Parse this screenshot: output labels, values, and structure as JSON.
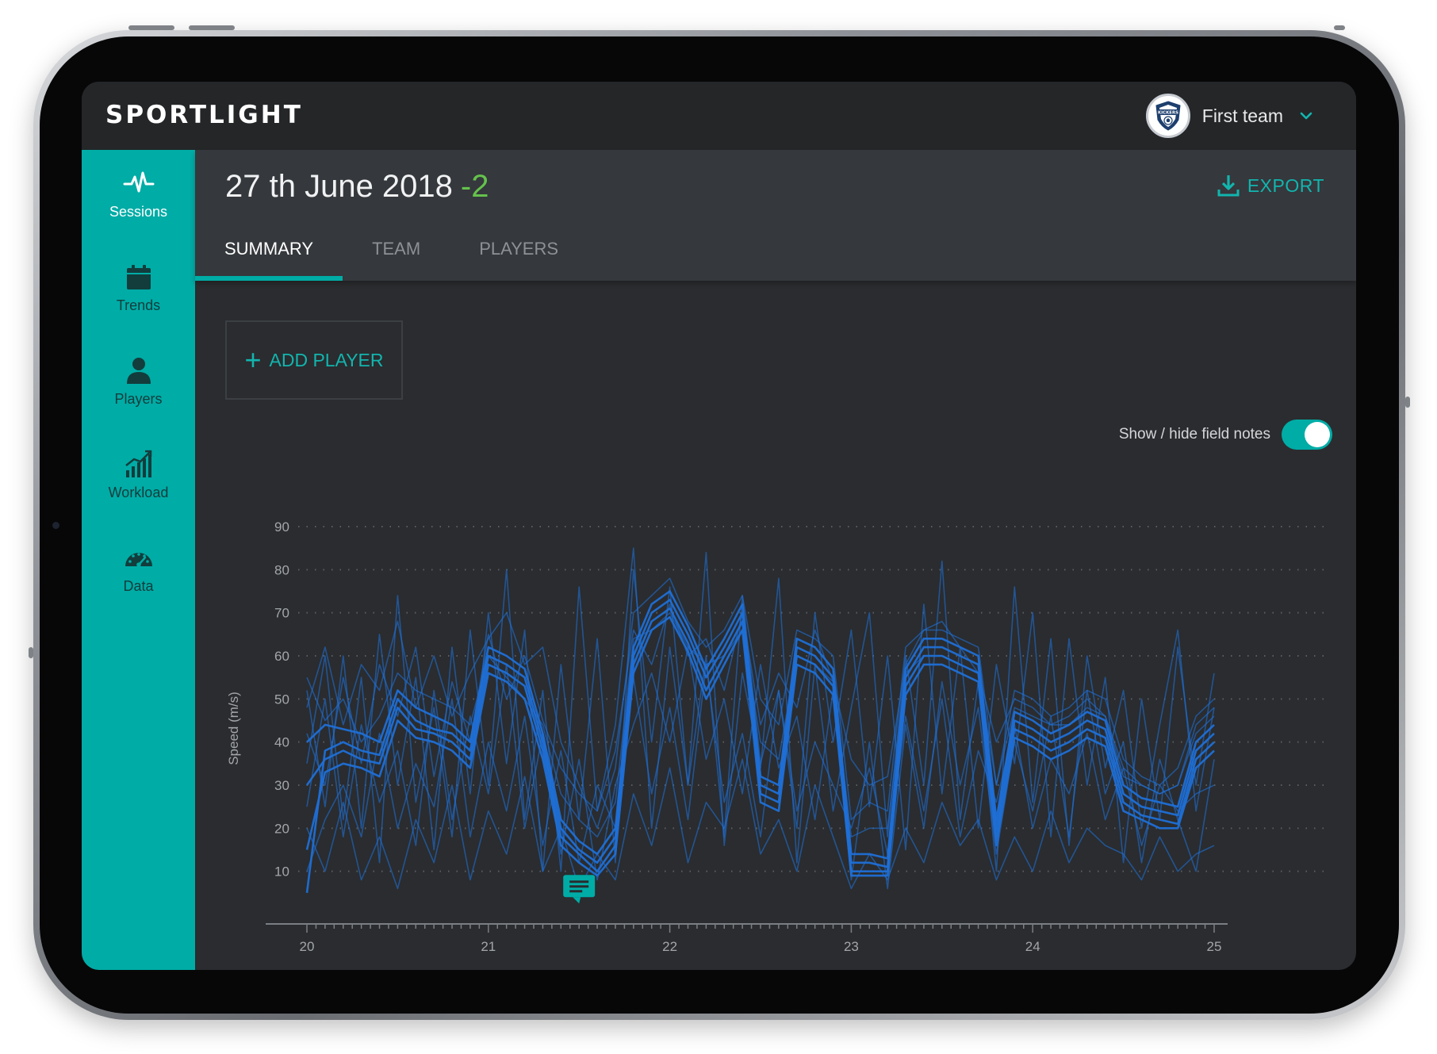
{
  "app": {
    "logo": "SPORTLIGHT"
  },
  "team_select": {
    "label": "First team",
    "badge_text": "KICKERS"
  },
  "sidebar": {
    "items": [
      {
        "label": "Sessions",
        "icon": "pulse-icon",
        "active": true
      },
      {
        "label": "Trends",
        "icon": "calendar-icon",
        "active": false
      },
      {
        "label": "Players",
        "icon": "person-icon",
        "active": false
      },
      {
        "label": "Workload",
        "icon": "bar-chart-icon",
        "active": false
      },
      {
        "label": "Data",
        "icon": "gauge-icon",
        "active": false
      }
    ]
  },
  "header": {
    "date": "27 th June 2018",
    "delta": "-2",
    "export_label": "EXPORT",
    "tabs": [
      {
        "label": "SUMMARY",
        "active": true
      },
      {
        "label": "TEAM",
        "active": false
      },
      {
        "label": "PLAYERS",
        "active": false
      }
    ]
  },
  "actions": {
    "add_player": "ADD PLAYER"
  },
  "field_notes": {
    "label": "Show / hide field notes",
    "enabled": true
  },
  "colors": {
    "accent": "#00aca6",
    "delta": "#64c24c",
    "line": "#1f6fd6"
  },
  "chart_data": {
    "type": "line",
    "ylabel": "Speed (m/s)",
    "xlabel": "",
    "xlim": [
      20,
      25
    ],
    "ylim": [
      0,
      90
    ],
    "x_ticks": [
      "20",
      "21",
      "22",
      "23",
      "24",
      "25"
    ],
    "y_ticks": [
      "10",
      "20",
      "30",
      "40",
      "50",
      "60",
      "70",
      "80",
      "90"
    ],
    "grid": "horizontal dotted",
    "field_note_at": {
      "x": 21.5,
      "y": 4
    },
    "x": [
      20.0,
      20.1,
      20.2,
      20.3,
      20.4,
      20.5,
      20.6,
      20.7,
      20.8,
      20.9,
      21.0,
      21.1,
      21.2,
      21.3,
      21.4,
      21.5,
      21.6,
      21.7,
      21.8,
      21.9,
      22.0,
      22.1,
      22.2,
      22.3,
      22.4,
      22.5,
      22.6,
      22.7,
      22.8,
      22.9,
      23.0,
      23.1,
      23.2,
      23.3,
      23.4,
      23.5,
      23.6,
      23.7,
      23.8,
      23.9,
      24.0,
      24.1,
      24.2,
      24.3,
      24.4,
      24.5,
      24.6,
      24.7,
      24.8,
      24.9,
      25.0
    ],
    "series": [
      {
        "values": [
          5,
          38,
          40,
          38,
          37,
          50,
          45,
          43,
          42,
          38,
          60,
          58,
          55,
          40,
          20,
          15,
          12,
          18,
          60,
          70,
          73,
          65,
          55,
          62,
          70,
          30,
          28,
          62,
          60,
          55,
          12,
          12,
          11,
          55,
          62,
          62,
          60,
          58,
          20,
          45,
          43,
          40,
          42,
          45,
          43,
          28,
          25,
          24,
          23,
          38,
          42
        ]
      },
      {
        "values": [
          30,
          36,
          38,
          36,
          35,
          48,
          43,
          42,
          40,
          36,
          58,
          56,
          53,
          38,
          18,
          14,
          10,
          16,
          58,
          68,
          71,
          63,
          52,
          60,
          68,
          28,
          26,
          60,
          58,
          53,
          10,
          10,
          10,
          53,
          60,
          60,
          58,
          56,
          18,
          43,
          41,
          38,
          40,
          43,
          41,
          26,
          23,
          22,
          21,
          36,
          40
        ]
      },
      {
        "values": [
          15,
          33,
          35,
          34,
          32,
          45,
          41,
          40,
          38,
          34,
          56,
          54,
          50,
          36,
          16,
          12,
          9,
          14,
          56,
          66,
          69,
          61,
          50,
          58,
          66,
          26,
          24,
          58,
          56,
          51,
          9,
          9,
          9,
          51,
          58,
          58,
          56,
          54,
          16,
          41,
          39,
          36,
          38,
          41,
          39,
          24,
          22,
          20,
          20,
          34,
          38
        ]
      },
      {
        "values": [
          40,
          44,
          43,
          42,
          40,
          52,
          48,
          46,
          44,
          40,
          62,
          60,
          57,
          42,
          22,
          17,
          14,
          20,
          62,
          72,
          75,
          67,
          57,
          64,
          72,
          32,
          30,
          64,
          62,
          57,
          14,
          14,
          13,
          57,
          64,
          64,
          62,
          60,
          22,
          47,
          45,
          42,
          44,
          47,
          45,
          30,
          27,
          26,
          25,
          40,
          44
        ]
      },
      {
        "values": [
          52,
          25,
          60,
          20,
          65,
          30,
          55,
          15,
          62,
          28,
          70,
          35,
          66,
          10,
          58,
          22,
          64,
          12,
          80,
          40,
          76,
          30,
          60,
          18,
          74,
          35,
          52,
          20,
          70,
          40,
          66,
          25,
          60,
          15,
          72,
          28,
          62,
          20,
          58,
          35,
          70,
          18,
          64,
          30,
          55,
          12,
          50,
          22,
          62,
          30,
          56
        ]
      },
      {
        "values": [
          35,
          60,
          22,
          55,
          12,
          74,
          26,
          48,
          18,
          66,
          30,
          80,
          22,
          52,
          10,
          76,
          24,
          44,
          85,
          20,
          62,
          30,
          84,
          16,
          56,
          34,
          78,
          12,
          58,
          24,
          48,
          70,
          18,
          60,
          30,
          82,
          22,
          54,
          10,
          76,
          26,
          64,
          16,
          60,
          34,
          52,
          20,
          44,
          66,
          24,
          48
        ]
      },
      {
        "values": [
          10,
          22,
          30,
          18,
          42,
          20,
          35,
          25,
          50,
          18,
          40,
          24,
          46,
          16,
          38,
          12,
          30,
          20,
          55,
          28,
          48,
          22,
          58,
          26,
          42,
          18,
          52,
          24,
          40,
          30,
          20,
          34,
          14,
          46,
          24,
          50,
          18,
          38,
          26,
          44,
          20,
          36,
          28,
          42,
          22,
          34,
          16,
          30,
          24,
          28,
          30
        ]
      },
      {
        "values": [
          42,
          30,
          55,
          35,
          58,
          46,
          62,
          32,
          54,
          40,
          65,
          50,
          60,
          45,
          34,
          28,
          24,
          38,
          66,
          58,
          72,
          60,
          64,
          52,
          70,
          44,
          56,
          48,
          66,
          54,
          36,
          30,
          32,
          58,
          66,
          68,
          62,
          56,
          40,
          50,
          48,
          44,
          46,
          50,
          46,
          34,
          30,
          28,
          30,
          42,
          46
        ]
      },
      {
        "values": [
          25,
          50,
          18,
          44,
          26,
          38,
          16,
          52,
          22,
          46,
          28,
          58,
          20,
          42,
          14,
          36,
          8,
          30,
          44,
          56,
          40,
          62,
          36,
          50,
          28,
          58,
          34,
          46,
          22,
          52,
          8,
          40,
          6,
          44,
          20,
          54,
          30,
          48,
          14,
          40,
          24,
          46,
          18,
          52,
          28,
          40,
          12,
          36,
          22,
          10,
          36
        ]
      },
      {
        "values": [
          48,
          62,
          44,
          58,
          52,
          68,
          48,
          60,
          46,
          56,
          64,
          70,
          58,
          62,
          40,
          30,
          20,
          34,
          70,
          74,
          78,
          68,
          62,
          66,
          74,
          50,
          44,
          66,
          64,
          60,
          22,
          26,
          24,
          62,
          66,
          66,
          64,
          62,
          30,
          52,
          50,
          46,
          48,
          52,
          50,
          36,
          32,
          30,
          34,
          46,
          50
        ]
      },
      {
        "values": [
          20,
          10,
          26,
          8,
          18,
          6,
          22,
          12,
          30,
          8,
          24,
          14,
          32,
          10,
          20,
          6,
          14,
          8,
          28,
          16,
          34,
          12,
          26,
          20,
          36,
          14,
          22,
          10,
          30,
          18,
          6,
          14,
          8,
          20,
          12,
          26,
          16,
          22,
          8,
          18,
          10,
          24,
          12,
          20,
          16,
          14,
          8,
          18,
          10,
          14,
          16
        ]
      },
      {
        "values": [
          55,
          45,
          50,
          40,
          46,
          56,
          52,
          50,
          48,
          44,
          60,
          55,
          50,
          44,
          28,
          22,
          18,
          26,
          64,
          66,
          70,
          62,
          58,
          60,
          66,
          40,
          36,
          60,
          58,
          54,
          18,
          20,
          20,
          56,
          60,
          60,
          58,
          56,
          30,
          48,
          46,
          44,
          44,
          48,
          46,
          32,
          30,
          28,
          30,
          44,
          48
        ]
      }
    ]
  }
}
